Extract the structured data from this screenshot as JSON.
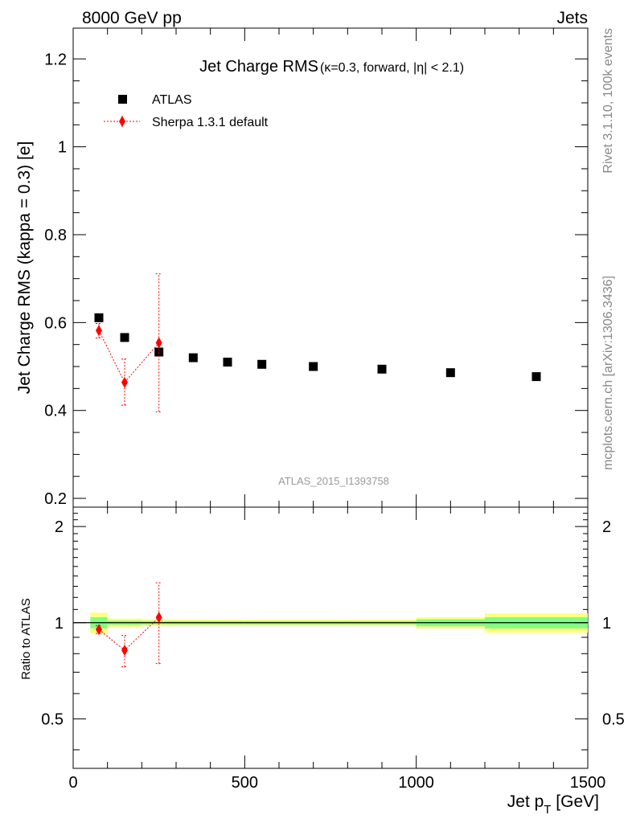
{
  "header": {
    "left": "8000 GeV pp",
    "right": "Jets"
  },
  "side_labels": {
    "rivet": "Rivet 3.1.10,  100k events",
    "mcplots": "mcplots.cern.ch [arXiv:1306.3436]"
  },
  "watermark": "ATLAS_2015_I1393758",
  "colors": {
    "data": "#000000",
    "mc": "#ff0000",
    "band_inner": "#80ff80",
    "band_outer": "#ffff80"
  },
  "chart_data": [
    {
      "type": "scatter",
      "title": "Jet Charge RMS",
      "subtitle": "(κ=0.3, forward, |η| < 2.1)",
      "ylabel": "Jet Charge RMS (kappa = 0.3) [e]",
      "xlim": [
        0,
        1500
      ],
      "ylim": [
        0.18,
        1.27
      ],
      "yticks": [
        0.2,
        0.4,
        0.6,
        0.8,
        1.0,
        1.2
      ],
      "ytick_labels": [
        "0.2",
        "0.4",
        "0.6",
        "0.8",
        "1",
        "1.2"
      ],
      "legend_position": "top-left",
      "series": [
        {
          "name": "ATLAS",
          "marker": "square",
          "x": [
            75,
            150,
            250,
            350,
            450,
            550,
            700,
            900,
            1100,
            1350
          ],
          "y": [
            0.611,
            0.566,
            0.533,
            0.52,
            0.51,
            0.505,
            0.5,
            0.494,
            0.486,
            0.477
          ],
          "x_lo": [
            50,
            100,
            200,
            300,
            400,
            500,
            600,
            800,
            1000,
            1200
          ],
          "x_hi": [
            100,
            200,
            300,
            400,
            500,
            600,
            800,
            1000,
            1200,
            1500
          ]
        },
        {
          "name": "Sherpa 1.3.1 default",
          "marker": "diamond",
          "line": "dotted",
          "x": [
            75,
            150,
            250
          ],
          "y": [
            0.582,
            0.464,
            0.554
          ],
          "err_lo": [
            0.565,
            0.412,
            0.397
          ],
          "err_hi": [
            0.598,
            0.517,
            0.711
          ]
        }
      ]
    },
    {
      "type": "scatter",
      "ylabel": "Ratio to ATLAS",
      "xlabel": "Jet p_T [GeV]",
      "xlim": [
        0,
        1500
      ],
      "ylim": [
        0.35,
        2.3
      ],
      "log_scale_y": true,
      "yticks": [
        0.5,
        1,
        2
      ],
      "ytick_labels": [
        "0.5",
        "1",
        "2"
      ],
      "xticks": [
        0,
        500,
        1000,
        1500
      ],
      "xtick_labels": [
        "0",
        "500",
        "1000",
        "1500"
      ],
      "band": {
        "x_lo": [
          50,
          100,
          200,
          300,
          400,
          500,
          600,
          800,
          1000,
          1200
        ],
        "x_hi": [
          100,
          200,
          300,
          400,
          500,
          600,
          800,
          1000,
          1200,
          1500
        ],
        "inner": [
          0.04,
          0.015,
          0.012,
          0.012,
          0.012,
          0.012,
          0.012,
          0.012,
          0.025,
          0.04
        ],
        "outer": [
          0.075,
          0.03,
          0.025,
          0.022,
          0.022,
          0.022,
          0.022,
          0.022,
          0.04,
          0.07
        ]
      },
      "series": [
        {
          "name": "Sherpa 1.3.1 default",
          "x": [
            75,
            150,
            250
          ],
          "y": [
            0.952,
            0.82,
            1.039
          ],
          "err_lo": [
            0.925,
            0.728,
            0.745
          ],
          "err_hi": [
            0.979,
            0.913,
            1.333
          ]
        }
      ]
    }
  ]
}
